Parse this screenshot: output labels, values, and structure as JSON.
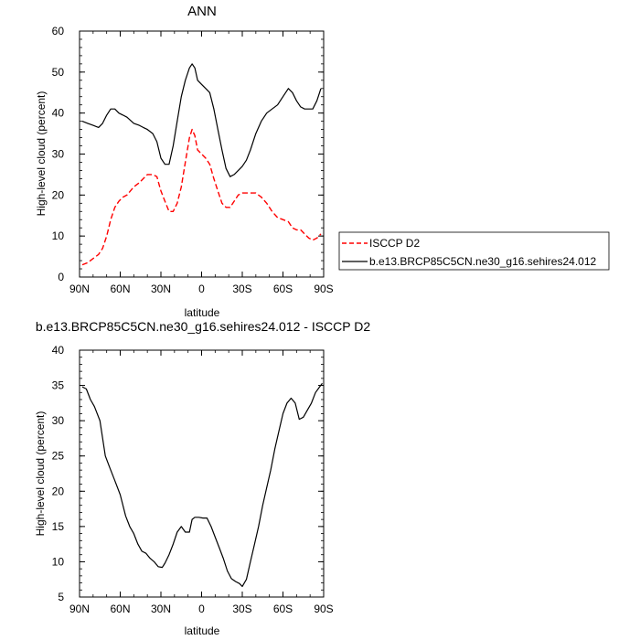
{
  "chart_data": [
    {
      "type": "line",
      "title": "ANN",
      "xlabel": "latitude",
      "ylabel": "High-level cloud (percent)",
      "xlim": [
        90,
        -90
      ],
      "ylim": [
        0,
        60
      ],
      "x_tick_values": [
        90,
        60,
        30,
        0,
        -30,
        -60,
        -90
      ],
      "x_tick_labels": [
        "90N",
        "60N",
        "30N",
        "0",
        "30S",
        "60S",
        "90S"
      ],
      "y_ticks": [
        0,
        10,
        20,
        30,
        40,
        50,
        60
      ],
      "legend_position": "right",
      "series": [
        {
          "name": "ISCCP D2",
          "color": "#ff0000",
          "dash": "dashed",
          "x": [
            88,
            84,
            80,
            76,
            73,
            70,
            67,
            64,
            61,
            58,
            55,
            50,
            46,
            43,
            40,
            36,
            33,
            30,
            27,
            24,
            21,
            18,
            15,
            12,
            9,
            7,
            5,
            3,
            0,
            -3,
            -6,
            -9,
            -12,
            -15,
            -18,
            -21,
            -24,
            -27,
            -30,
            -33,
            -36,
            -40,
            -44,
            -48,
            -52,
            -56,
            -60,
            -64,
            -67,
            -70,
            -73,
            -76,
            -79,
            -82,
            -85,
            -88
          ],
          "y": [
            3,
            3.5,
            4.5,
            5.5,
            7,
            10,
            14,
            17,
            18.5,
            19.5,
            20,
            22,
            23,
            24,
            25,
            25,
            24.5,
            21,
            18.5,
            16,
            16,
            18,
            22,
            28,
            34,
            36,
            34.5,
            31,
            30,
            29,
            27.5,
            24,
            21,
            18,
            17,
            17,
            18.5,
            20,
            20.5,
            20.5,
            20.5,
            20.5,
            19.5,
            18,
            16,
            14.5,
            14,
            13.5,
            12,
            11.5,
            11.5,
            10.5,
            9.5,
            9,
            9.5,
            10.5
          ]
        },
        {
          "name": "b.e13.BRCP85C5CN.ne30_g16.sehires24.012",
          "color": "#000000",
          "dash": "solid",
          "x": [
            88,
            84,
            80,
            76,
            73,
            70,
            67,
            64,
            61,
            58,
            55,
            50,
            46,
            43,
            40,
            36,
            33,
            30,
            27,
            24,
            21,
            18,
            15,
            12,
            9,
            7,
            5,
            3,
            0,
            -3,
            -6,
            -9,
            -12,
            -15,
            -18,
            -21,
            -24,
            -27,
            -30,
            -33,
            -36,
            -40,
            -44,
            -48,
            -52,
            -56,
            -60,
            -64,
            -67,
            -70,
            -73,
            -76,
            -79,
            -82,
            -85,
            -88
          ],
          "y": [
            38,
            37.5,
            37,
            36.5,
            37.5,
            39.5,
            41,
            41,
            40,
            39.5,
            39,
            37.5,
            37,
            36.5,
            36,
            35,
            33,
            29,
            27.5,
            27.5,
            32,
            38,
            44,
            48,
            51,
            52,
            51,
            48,
            47,
            46,
            45,
            41,
            36,
            31,
            26.5,
            24.5,
            25,
            26,
            27,
            28.5,
            31,
            35,
            38,
            40,
            41,
            42,
            44,
            46,
            45,
            43,
            41.5,
            41,
            41,
            41,
            43,
            46
          ]
        }
      ]
    },
    {
      "type": "line",
      "title": "b.e13.BRCP85C5CN.ne30_g16.sehires24.012 - ISCCP D2",
      "xlabel": "latitude",
      "ylabel": "High-level cloud (percent)",
      "xlim": [
        90,
        -90
      ],
      "ylim": [
        5,
        40
      ],
      "x_tick_values": [
        90,
        60,
        30,
        0,
        -30,
        -60,
        -90
      ],
      "x_tick_labels": [
        "90N",
        "60N",
        "30N",
        "0",
        "30S",
        "60S",
        "90S"
      ],
      "y_ticks": [
        5,
        10,
        15,
        20,
        25,
        30,
        35,
        40
      ],
      "series": [
        {
          "color": "#000000",
          "dash": "solid",
          "x": [
            88,
            85,
            82,
            79,
            75,
            71,
            68,
            64,
            60,
            56,
            53,
            50,
            47,
            44,
            41,
            38,
            35,
            32,
            29,
            27,
            24,
            21,
            18,
            15,
            12,
            9,
            7,
            5,
            2,
            -1,
            -4,
            -7,
            -10,
            -13,
            -16,
            -19,
            -22,
            -25,
            -28,
            -30,
            -33,
            -36,
            -39,
            -42,
            -45,
            -48,
            -51,
            -54,
            -57,
            -60,
            -63,
            -66,
            -69,
            -72,
            -75,
            -78,
            -81,
            -84,
            -87,
            -89
          ],
          "y": [
            34.8,
            34.5,
            33,
            32,
            30,
            25,
            23.5,
            21.5,
            19.5,
            16.5,
            15,
            14,
            12.5,
            11.5,
            11.2,
            10.5,
            10,
            9.3,
            9.2,
            9.8,
            11,
            12.5,
            14.2,
            15,
            14.2,
            14.2,
            16,
            16.3,
            16.3,
            16.2,
            16.2,
            15,
            13.5,
            12,
            10.5,
            8.7,
            7.6,
            7.2,
            6.9,
            6.5,
            7.5,
            10,
            12.5,
            15,
            18,
            20.5,
            23,
            26,
            28.5,
            31,
            32.5,
            33.2,
            32.5,
            30.2,
            30.5,
            31.5,
            32.5,
            34,
            34.8,
            35.3
          ]
        }
      ]
    }
  ]
}
